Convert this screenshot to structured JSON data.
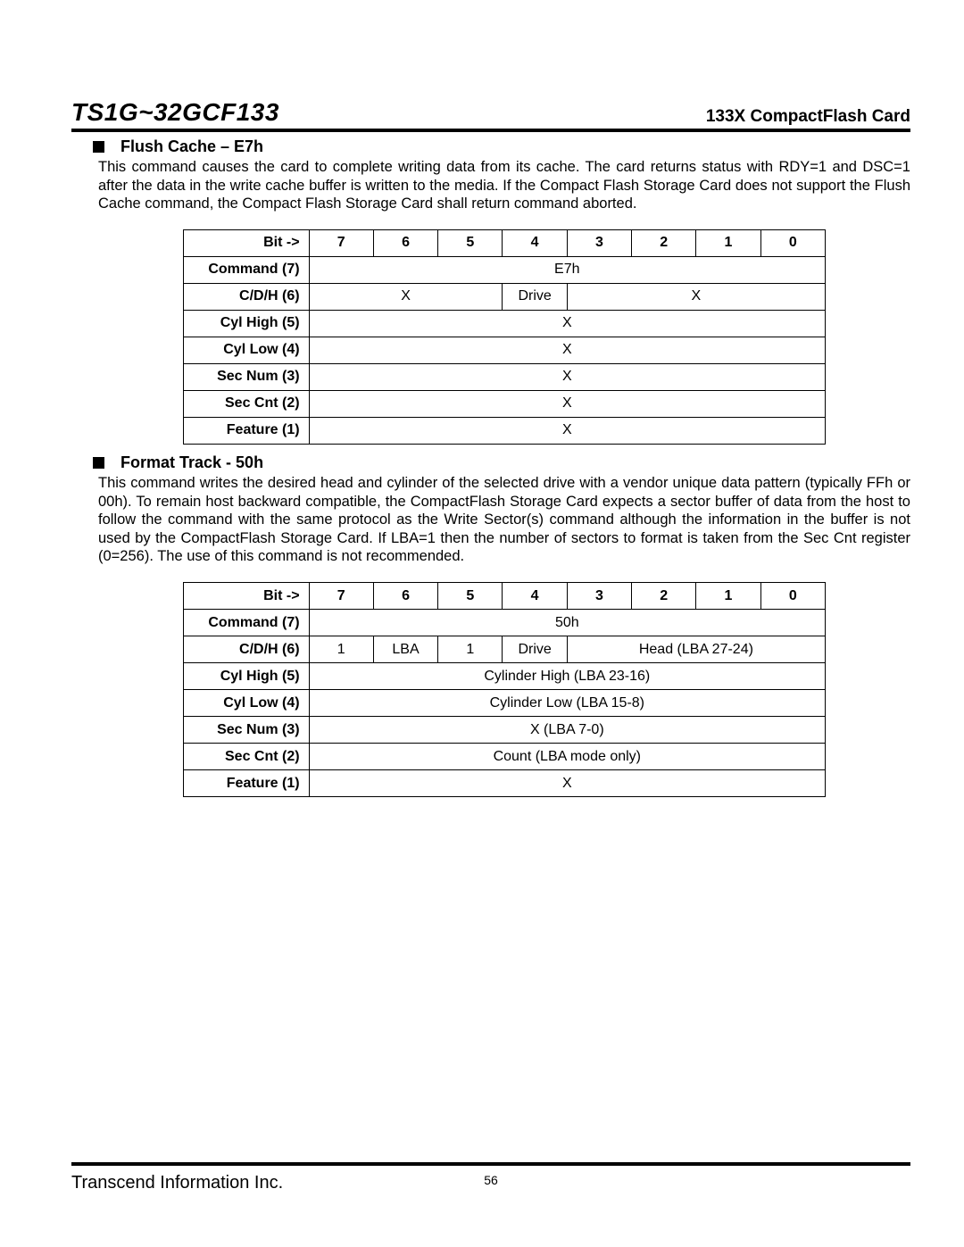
{
  "header": {
    "model": "TS1G~32GCF133",
    "subtitle": "133X CompactFlash Card"
  },
  "sections": [
    {
      "heading": "Flush Cache – E7h",
      "body": "This command causes the card to complete writing data from its cache. The card returns status with RDY=1 and DSC=1 after the data in the write cache buffer is written to the media. If the Compact Flash Storage Card does not support the Flush Cache command, the Compact Flash Storage Card shall return command aborted.",
      "table": {
        "bit_header": "Bit ->",
        "bits": [
          "7",
          "6",
          "5",
          "4",
          "3",
          "2",
          "1",
          "0"
        ],
        "rows": [
          {
            "label": "Command (7)",
            "cells": [
              {
                "span": 8,
                "text": "E7h"
              }
            ]
          },
          {
            "label": "C/D/H (6)",
            "cells": [
              {
                "span": 3,
                "text": "X"
              },
              {
                "span": 1,
                "text": "Drive"
              },
              {
                "span": 4,
                "text": "X"
              }
            ]
          },
          {
            "label": "Cyl High (5)",
            "cells": [
              {
                "span": 8,
                "text": "X"
              }
            ]
          },
          {
            "label": "Cyl Low (4)",
            "cells": [
              {
                "span": 8,
                "text": "X"
              }
            ]
          },
          {
            "label": "Sec Num (3)",
            "cells": [
              {
                "span": 8,
                "text": "X"
              }
            ]
          },
          {
            "label": "Sec Cnt (2)",
            "cells": [
              {
                "span": 8,
                "text": "X"
              }
            ]
          },
          {
            "label": "Feature (1)",
            "cells": [
              {
                "span": 8,
                "text": "X"
              }
            ]
          }
        ]
      }
    },
    {
      "heading": "Format Track - 50h",
      "body": "This command writes the desired head and cylinder of the selected drive with a vendor unique data pattern (typically FFh or 00h). To remain host backward compatible, the CompactFlash Storage Card expects a sector buffer of data from the host to follow the command with the same protocol as the Write Sector(s) command although the information in the buffer is not used by the CompactFlash Storage Card. If LBA=1 then the number of sectors to format is taken from the Sec Cnt register (0=256). The use of this command is not recommended.",
      "table": {
        "bit_header": "Bit ->",
        "bits": [
          "7",
          "6",
          "5",
          "4",
          "3",
          "2",
          "1",
          "0"
        ],
        "rows": [
          {
            "label": "Command (7)",
            "cells": [
              {
                "span": 8,
                "text": "50h"
              }
            ]
          },
          {
            "label": "C/D/H (6)",
            "cells": [
              {
                "span": 1,
                "text": "1"
              },
              {
                "span": 1,
                "text": "LBA"
              },
              {
                "span": 1,
                "text": "1"
              },
              {
                "span": 1,
                "text": "Drive"
              },
              {
                "span": 4,
                "text": "Head (LBA 27-24)"
              }
            ]
          },
          {
            "label": "Cyl High (5)",
            "cells": [
              {
                "span": 8,
                "text": "Cylinder High (LBA 23-16)"
              }
            ]
          },
          {
            "label": "Cyl Low (4)",
            "cells": [
              {
                "span": 8,
                "text": "Cylinder Low (LBA 15-8)"
              }
            ]
          },
          {
            "label": "Sec Num (3)",
            "cells": [
              {
                "span": 8,
                "text": "X (LBA 7-0)"
              }
            ]
          },
          {
            "label": "Sec Cnt (2)",
            "cells": [
              {
                "span": 8,
                "text": "Count (LBA mode only)"
              }
            ]
          },
          {
            "label": "Feature (1)",
            "cells": [
              {
                "span": 8,
                "text": "X"
              }
            ]
          }
        ]
      }
    }
  ],
  "footer": {
    "company": "Transcend Information Inc.",
    "page": "56"
  }
}
